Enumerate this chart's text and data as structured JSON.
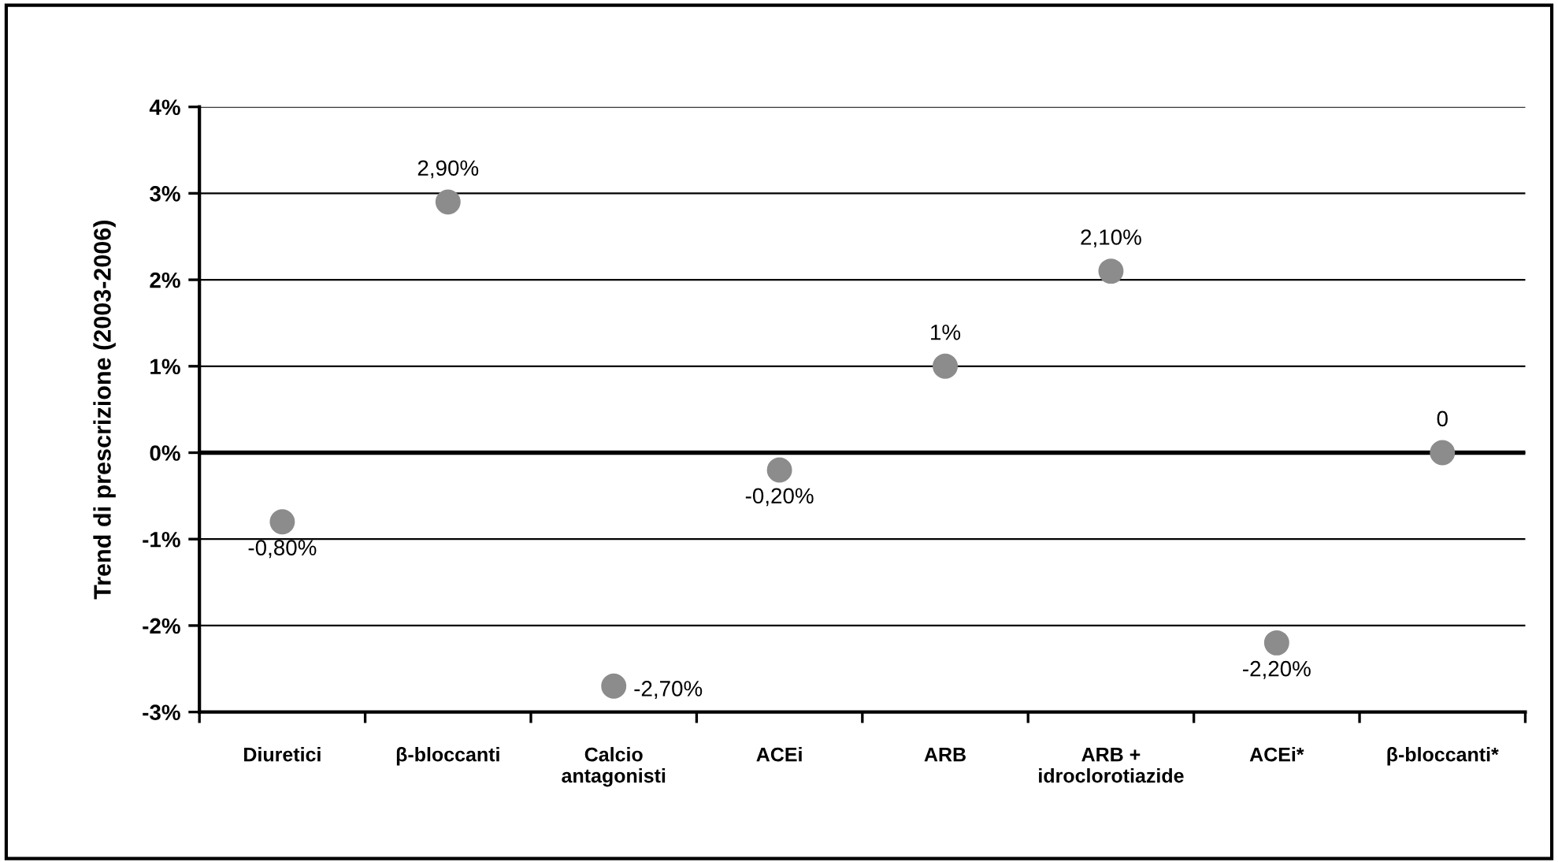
{
  "chart_data": {
    "type": "scatter",
    "ylabel": "Trend di prescrizione (2003-2006)",
    "categories": [
      "Diuretici",
      "β-bloccanti",
      "Calcio\nantagonisti",
      "ACEi",
      "ARB",
      "ARB +\nidroclorotiazide",
      "ACEi*",
      "β-bloccanti*"
    ],
    "series": [
      {
        "color": "#8c8c8c",
        "values": [
          -0.8,
          2.9,
          -2.7,
          -0.2,
          1,
          2.1,
          -2.2,
          0
        ],
        "value_labels": [
          "-0,80%",
          "2,90%",
          "-2,70%",
          "-0,20%",
          "1%",
          "2,10%",
          "-2,20%",
          "0"
        ]
      }
    ],
    "ylim": [
      -3,
      4
    ],
    "yticks": [
      {
        "value": -3,
        "label": "-3%"
      },
      {
        "value": -2,
        "label": "-2%"
      },
      {
        "value": -1,
        "label": "-1%"
      },
      {
        "value": 0,
        "label": "0%"
      },
      {
        "value": 1,
        "label": "1%"
      },
      {
        "value": 2,
        "label": "2%"
      },
      {
        "value": 3,
        "label": "3%"
      },
      {
        "value": 4,
        "label": "4%"
      }
    ],
    "grid": "y",
    "marker": "circle",
    "ref_lines": [
      {
        "axis": "y",
        "value": 0,
        "color": "#000000"
      }
    ]
  }
}
